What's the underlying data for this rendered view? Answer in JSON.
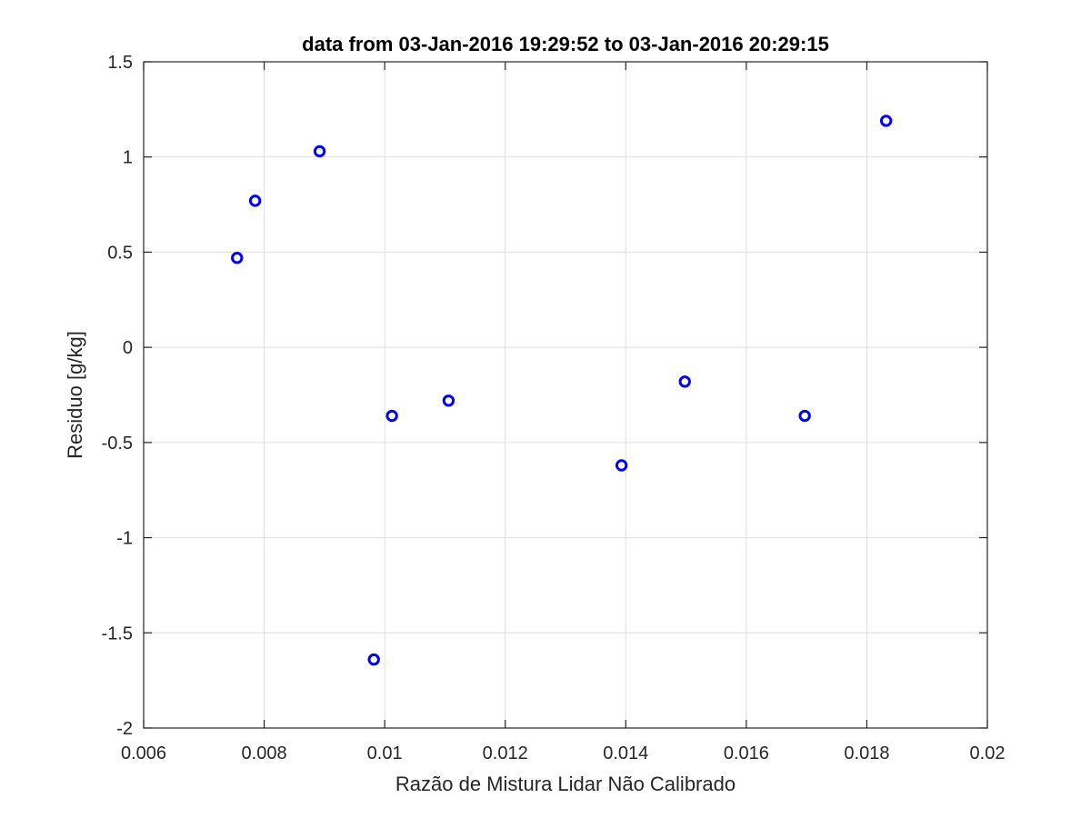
{
  "chart_data": {
    "type": "scatter",
    "title": "data from 03-Jan-2016 19:29:52 to 03-Jan-2016 20:29:15",
    "xlabel": "Razão de Mistura Lidar Não Calibrado",
    "ylabel": "Residuo [g/kg]",
    "xlim": [
      0.006,
      0.02
    ],
    "ylim": [
      -2,
      1.5
    ],
    "grid": true,
    "x_ticks": [
      "0.006",
      "0.008",
      "0.01",
      "0.012",
      "0.014",
      "0.016",
      "0.018",
      "0.02"
    ],
    "y_ticks": [
      "-2",
      "-1.5",
      "-1",
      "-0.5",
      "0",
      "0.5",
      "1",
      "1.5"
    ],
    "marker_color": "#0000ff",
    "marker": "circle-open",
    "series": [
      {
        "x": [
          0.00755,
          0.00785,
          0.00892,
          0.00982,
          0.01012,
          0.01106,
          0.01393,
          0.01498,
          0.01697,
          0.01832
        ],
        "y": [
          0.47,
          0.77,
          1.03,
          -1.64,
          -0.36,
          -0.28,
          -0.62,
          -0.18,
          -0.36,
          1.19
        ]
      }
    ]
  }
}
